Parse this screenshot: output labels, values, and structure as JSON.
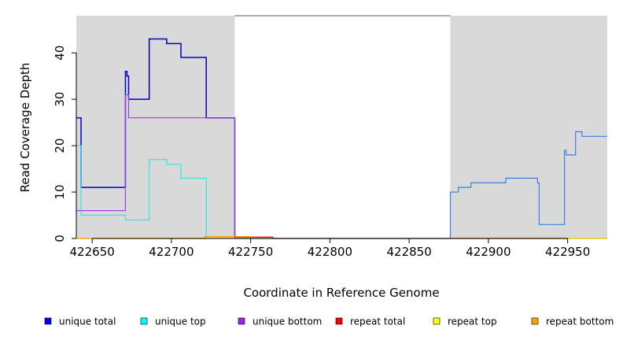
{
  "chart_data": {
    "type": "line",
    "step": true,
    "xlabel": "Coordinate in Reference Genome",
    "ylabel": "Read Coverage Depth",
    "xlim": [
      422640,
      422975
    ],
    "ylim": [
      0,
      48
    ],
    "xticks": [
      422650,
      422700,
      422750,
      422800,
      422850,
      422900,
      422950
    ],
    "xtick_labels": [
      "422650",
      "422700",
      "422750",
      "422800",
      "422850",
      "422900",
      "422950"
    ],
    "yticks": [
      0,
      10,
      20,
      30,
      40
    ],
    "ytick_labels": [
      "0",
      "10",
      "20",
      "30",
      "40"
    ],
    "grid": false,
    "shaded_regions": [
      {
        "from": 422640,
        "to": 422740,
        "color": "#d9d9d9"
      },
      {
        "from": 422876,
        "to": 422975,
        "color": "#d9d9d9"
      }
    ],
    "series": [
      {
        "name": "unique total",
        "color": "#0000cc",
        "points": [
          [
            422640,
            26
          ],
          [
            422643,
            26
          ],
          [
            422643,
            11
          ],
          [
            422671,
            11
          ],
          [
            422671,
            36
          ],
          [
            422672,
            36
          ],
          [
            422672,
            35
          ],
          [
            422673,
            35
          ],
          [
            422673,
            30
          ],
          [
            422686,
            30
          ],
          [
            422686,
            43
          ],
          [
            422697,
            43
          ],
          [
            422697,
            42
          ],
          [
            422706,
            42
          ],
          [
            422706,
            39
          ],
          [
            422722,
            39
          ],
          [
            422722,
            26
          ],
          [
            422740,
            26
          ],
          [
            422740,
            0
          ]
        ]
      },
      {
        "name": "unique top",
        "color": "#33e5e5",
        "points": [
          [
            422640,
            20
          ],
          [
            422643,
            20
          ],
          [
            422643,
            5
          ],
          [
            422671,
            5
          ],
          [
            422671,
            4
          ],
          [
            422686,
            4
          ],
          [
            422686,
            17
          ],
          [
            422697,
            17
          ],
          [
            422697,
            16
          ],
          [
            422706,
            16
          ],
          [
            422706,
            13
          ],
          [
            422722,
            13
          ],
          [
            422722,
            0
          ]
        ]
      },
      {
        "name": "unique bottom",
        "color": "#a040e0",
        "points": [
          [
            422640,
            6
          ],
          [
            422671,
            6
          ],
          [
            422671,
            31
          ],
          [
            422673,
            31
          ],
          [
            422673,
            26
          ],
          [
            422740,
            26
          ],
          [
            422740,
            0
          ]
        ]
      },
      {
        "name": "repeat total",
        "color": "#ff0000",
        "points": [
          [
            422740,
            0.3
          ],
          [
            422764,
            0.3
          ],
          [
            422764,
            0
          ],
          [
            422876,
            0
          ],
          [
            422975,
            0
          ]
        ]
      },
      {
        "name": "repeat top",
        "color": "#e6e600",
        "points": [
          [
            422640,
            0
          ],
          [
            422975,
            0
          ]
        ]
      },
      {
        "name": "repeat bottom",
        "color": "#ff9900",
        "points": [
          [
            422640,
            0
          ],
          [
            422721,
            0
          ],
          [
            422721,
            0.4
          ],
          [
            422750,
            0.4
          ],
          [
            422750,
            0
          ]
        ]
      },
      {
        "name": "",
        "color": "#3a7fe0",
        "points": [
          [
            422740,
            0
          ],
          [
            422876,
            0
          ],
          [
            422876,
            10
          ],
          [
            422881,
            10
          ],
          [
            422881,
            11
          ],
          [
            422889,
            11
          ],
          [
            422889,
            12
          ],
          [
            422911,
            12
          ],
          [
            422911,
            13
          ],
          [
            422931,
            13
          ],
          [
            422931,
            12
          ],
          [
            422932,
            12
          ],
          [
            422932,
            3
          ],
          [
            422948,
            3
          ],
          [
            422948,
            19
          ],
          [
            422949,
            19
          ],
          [
            422949,
            18
          ],
          [
            422955,
            18
          ],
          [
            422955,
            23
          ],
          [
            422959,
            23
          ],
          [
            422959,
            22
          ],
          [
            422975,
            22
          ]
        ]
      },
      {
        "name": "",
        "color": "#777777",
        "points": [
          [
            422740,
            48
          ],
          [
            422876,
            48
          ]
        ]
      }
    ],
    "legend": {
      "placement": "bottom",
      "items": [
        {
          "label": "unique total",
          "color": "#0000ff"
        },
        {
          "label": "unique top",
          "color": "#00ffff"
        },
        {
          "label": "unique bottom",
          "color": "#a020f0"
        },
        {
          "label": "repeat total",
          "color": "#ff0000"
        },
        {
          "label": "repeat top",
          "color": "#ffff00"
        },
        {
          "label": "repeat bottom",
          "color": "#ffa500"
        }
      ]
    }
  }
}
